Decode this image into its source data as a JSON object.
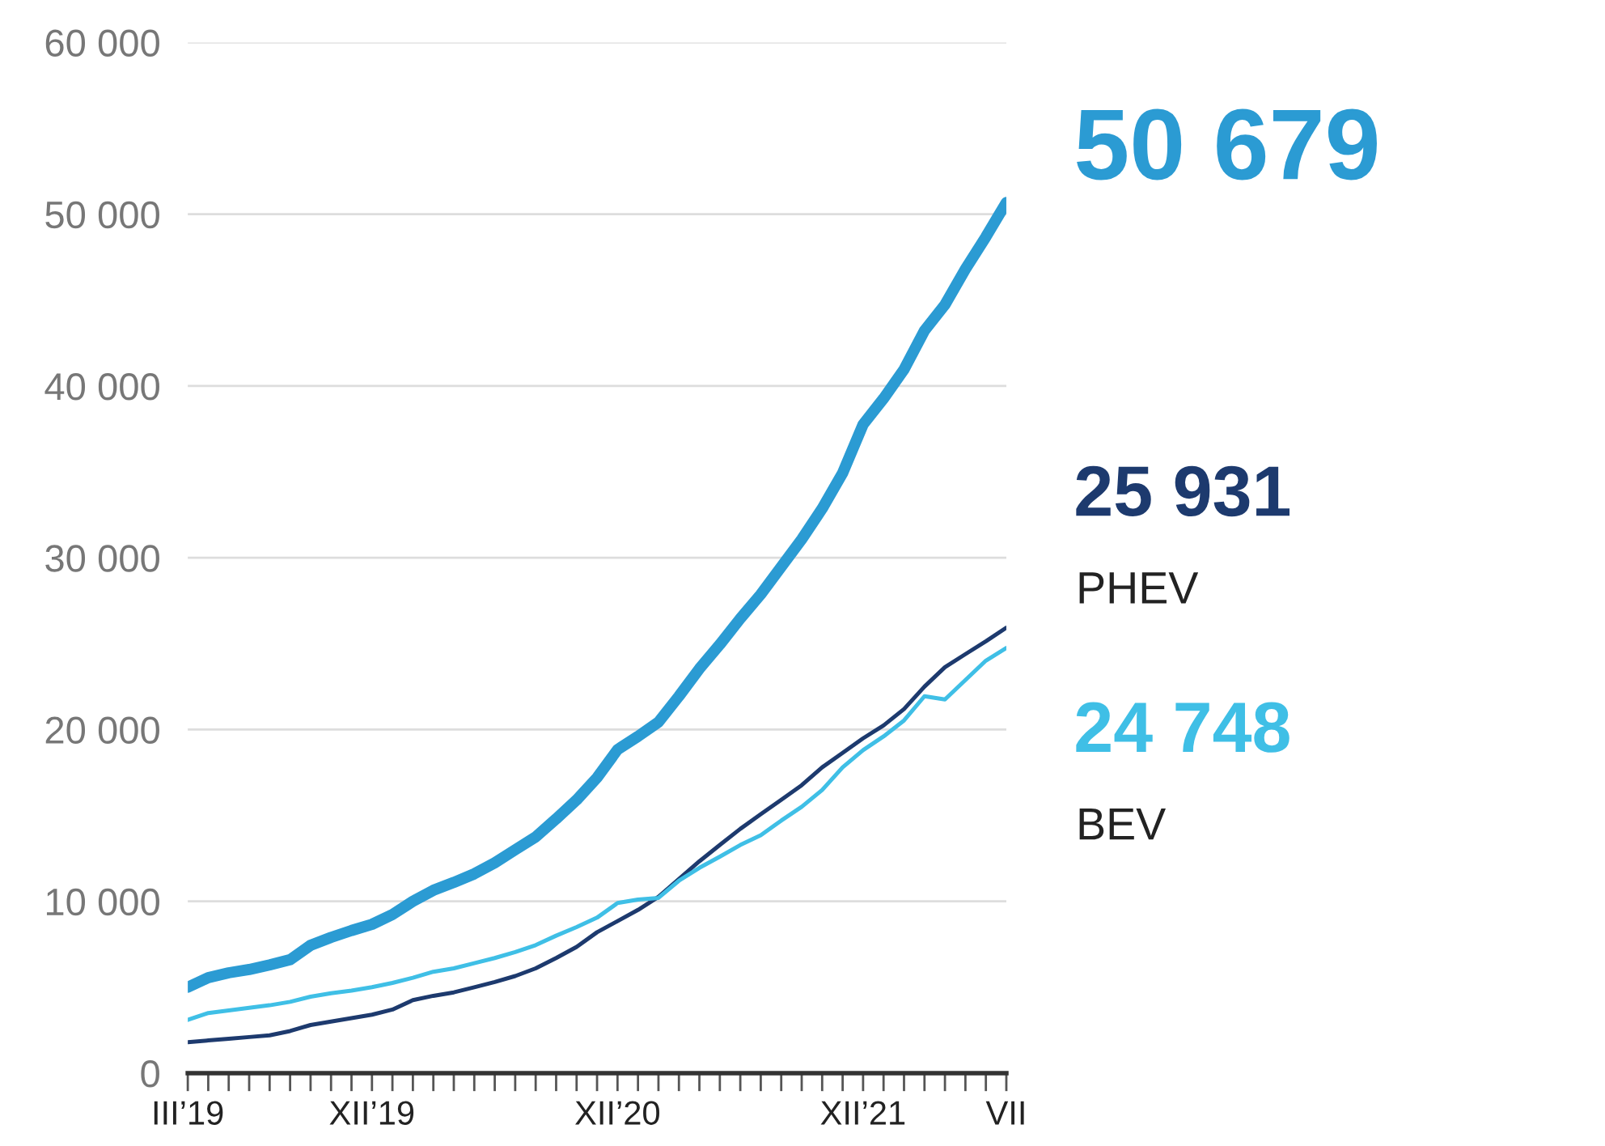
{
  "chart_data": {
    "type": "line",
    "x": [
      "2019-03",
      "2019-04",
      "2019-05",
      "2019-06",
      "2019-07",
      "2019-08",
      "2019-09",
      "2019-10",
      "2019-11",
      "2019-12",
      "2020-01",
      "2020-02",
      "2020-03",
      "2020-04",
      "2020-05",
      "2020-06",
      "2020-07",
      "2020-08",
      "2020-09",
      "2020-10",
      "2020-11",
      "2020-12",
      "2021-01",
      "2021-02",
      "2021-03",
      "2021-04",
      "2021-05",
      "2021-06",
      "2021-07",
      "2021-08",
      "2021-09",
      "2021-10",
      "2021-11",
      "2021-12",
      "2022-01",
      "2022-02",
      "2022-03",
      "2022-04",
      "2022-05",
      "2022-06",
      "2022-07"
    ],
    "series": [
      {
        "color": "#2b9bd3",
        "values": [
          5000,
          5560,
          5840,
          6030,
          6300,
          6600,
          7440,
          7900,
          8300,
          8660,
          9230,
          10000,
          10640,
          11100,
          11600,
          12240,
          13000,
          13750,
          14800,
          15900,
          17200,
          18830,
          19600,
          20430,
          21940,
          23540,
          24950,
          26460,
          27870,
          29470,
          31070,
          32860,
          34930,
          37760,
          39270,
          40960,
          43220,
          44730,
          46800,
          48680,
          50679
        ],
        "value_labels": [
          null,
          null,
          null,
          null,
          null,
          null,
          null,
          null,
          null,
          null,
          null,
          null,
          null,
          null,
          null,
          null,
          null,
          null,
          null,
          null,
          null,
          null,
          null,
          null,
          null,
          null,
          null,
          null,
          null,
          null,
          null,
          null,
          null,
          null,
          null,
          null,
          null,
          null,
          null,
          null,
          "50 679"
        ]
      },
      {
        "name": "PHEV",
        "color": "#1d3a6e",
        "values": [
          1800,
          1900,
          2000,
          2100,
          2200,
          2450,
          2800,
          3000,
          3200,
          3400,
          3700,
          4250,
          4500,
          4700,
          5000,
          5300,
          5650,
          6100,
          6700,
          7350,
          8200,
          8850,
          9500,
          10260,
          11300,
          12330,
          13280,
          14220,
          15070,
          15910,
          16760,
          17800,
          18640,
          19490,
          20240,
          21190,
          22500,
          23630,
          24390,
          25140,
          25931
        ],
        "value_labels": [
          null,
          null,
          null,
          null,
          null,
          null,
          null,
          null,
          null,
          null,
          null,
          null,
          null,
          null,
          null,
          null,
          null,
          null,
          null,
          null,
          null,
          null,
          null,
          null,
          null,
          null,
          null,
          null,
          null,
          null,
          null,
          null,
          null,
          null,
          null,
          null,
          null,
          null,
          null,
          null,
          "25 931"
        ]
      },
      {
        "name": "BEV",
        "color": "#3fbfe6",
        "values": [
          3100,
          3500,
          3650,
          3800,
          3950,
          4150,
          4450,
          4650,
          4800,
          5000,
          5250,
          5550,
          5900,
          6100,
          6400,
          6700,
          7050,
          7450,
          8000,
          8500,
          9050,
          9900,
          10100,
          10200,
          11200,
          11950,
          12600,
          13280,
          13850,
          14700,
          15500,
          16480,
          17800,
          18800,
          19600,
          20530,
          21940,
          21750,
          22880,
          24010,
          24748
        ],
        "value_labels": [
          null,
          null,
          null,
          null,
          null,
          null,
          null,
          null,
          null,
          null,
          null,
          null,
          null,
          null,
          null,
          null,
          null,
          null,
          null,
          null,
          null,
          null,
          null,
          null,
          null,
          null,
          null,
          null,
          null,
          null,
          null,
          null,
          null,
          null,
          null,
          null,
          null,
          null,
          null,
          null,
          "24 748"
        ]
      }
    ],
    "xlim": [
      "2019-03",
      "2022-07"
    ],
    "xticks": [
      {
        "value": "2019-03",
        "label": "III’19"
      },
      {
        "value": "2019-04",
        "label": null
      },
      {
        "value": "2019-05",
        "label": null
      },
      {
        "value": "2019-06",
        "label": null
      },
      {
        "value": "2019-07",
        "label": null
      },
      {
        "value": "2019-08",
        "label": null
      },
      {
        "value": "2019-09",
        "label": null
      },
      {
        "value": "2019-10",
        "label": null
      },
      {
        "value": "2019-11",
        "label": null
      },
      {
        "value": "2019-12",
        "label": "XII’19"
      },
      {
        "value": "2020-01",
        "label": null
      },
      {
        "value": "2020-02",
        "label": null
      },
      {
        "value": "2020-03",
        "label": null
      },
      {
        "value": "2020-04",
        "label": null
      },
      {
        "value": "2020-05",
        "label": null
      },
      {
        "value": "2020-06",
        "label": null
      },
      {
        "value": "2020-07",
        "label": null
      },
      {
        "value": "2020-08",
        "label": null
      },
      {
        "value": "2020-09",
        "label": null
      },
      {
        "value": "2020-10",
        "label": null
      },
      {
        "value": "2020-11",
        "label": null
      },
      {
        "value": "2020-12",
        "label": "XII’20"
      },
      {
        "value": "2021-01",
        "label": null
      },
      {
        "value": "2021-02",
        "label": null
      },
      {
        "value": "2021-03",
        "label": null
      },
      {
        "value": "2021-04",
        "label": null
      },
      {
        "value": "2021-05",
        "label": null
      },
      {
        "value": "2021-06",
        "label": null
      },
      {
        "value": "2021-07",
        "label": null
      },
      {
        "value": "2021-08",
        "label": null
      },
      {
        "value": "2021-09",
        "label": null
      },
      {
        "value": "2021-10",
        "label": null
      },
      {
        "value": "2021-11",
        "label": null
      },
      {
        "value": "2021-12",
        "label": "XII’21"
      },
      {
        "value": "2022-01",
        "label": null
      },
      {
        "value": "2022-02",
        "label": null
      },
      {
        "value": "2022-03",
        "label": null
      },
      {
        "value": "2022-04",
        "label": null
      },
      {
        "value": "2022-05",
        "label": null
      },
      {
        "value": "2022-06",
        "label": null
      },
      {
        "value": "2022-07",
        "label": "VII"
      }
    ],
    "ylim": [
      0,
      60000
    ],
    "yticks": [
      {
        "value": 0,
        "label": "0"
      },
      {
        "value": 10000,
        "label": "10 000"
      },
      {
        "value": 20000,
        "label": "20 000"
      },
      {
        "value": 30000,
        "label": "30 000"
      },
      {
        "value": 40000,
        "label": "40 000"
      },
      {
        "value": 50000,
        "label": "50 000"
      },
      {
        "value": 60000,
        "label": "60 000"
      }
    ],
    "grid": "y",
    "legend": false,
    "marker": "none",
    "line_style": "solid"
  }
}
